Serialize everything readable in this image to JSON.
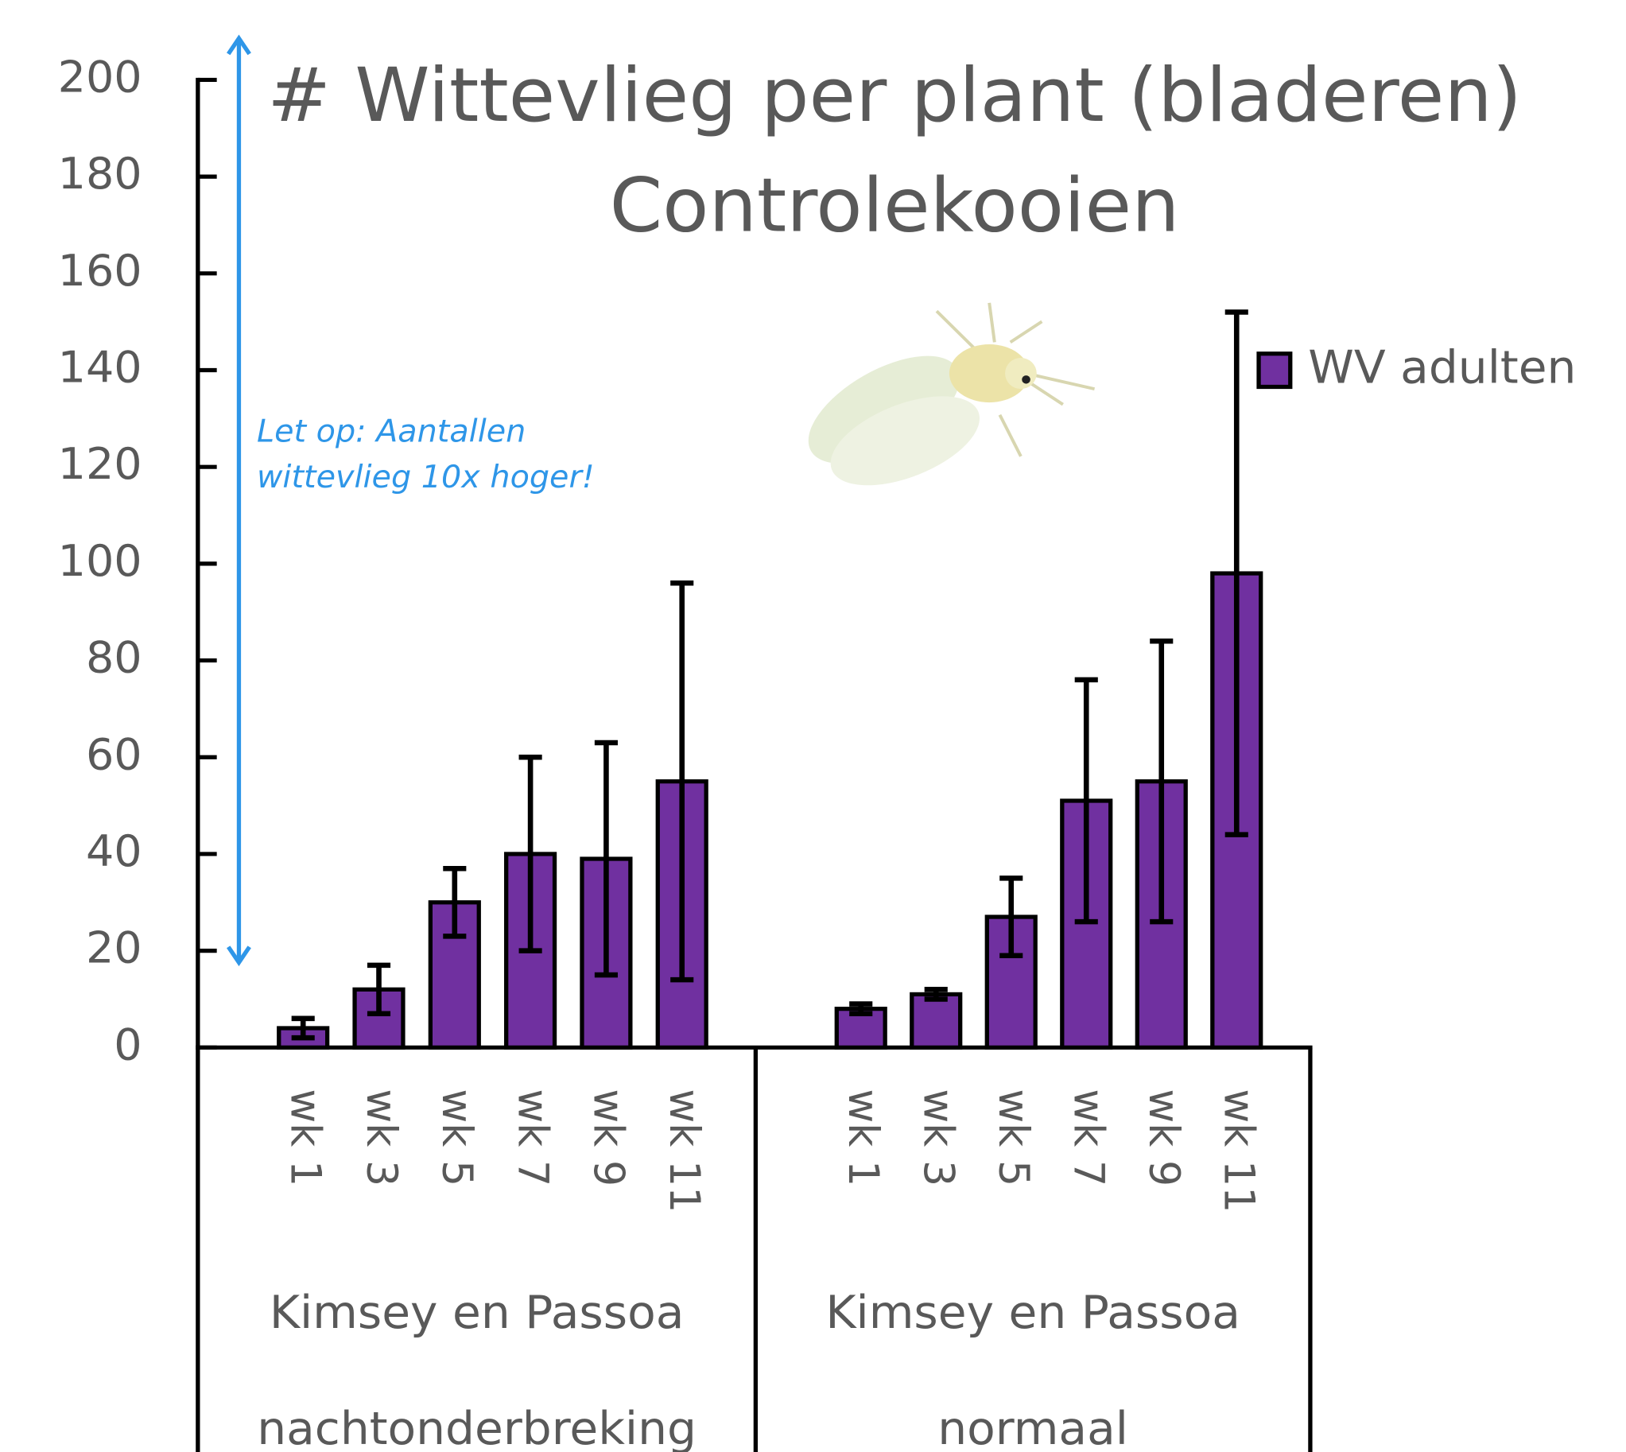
{
  "chart_data": {
    "type": "bar",
    "title": [
      "# Wittevlieg per plant (bladeren)",
      "Controlekooien"
    ],
    "annotation": [
      "Let op: Aantallen",
      "wittevlieg 10x hoger!"
    ],
    "groups": [
      {
        "label": [
          "Kimsey en Passoa",
          "nachtonderbreking"
        ],
        "categories": [
          "wk 1",
          "wk 3",
          "wk 5",
          "wk 7",
          "wk 9",
          "wk 11"
        ]
      },
      {
        "label": [
          "Kimsey en Passoa",
          "normaal"
        ],
        "categories": [
          "wk 1",
          "wk 3",
          "wk 5",
          "wk 7",
          "wk 9",
          "wk 11"
        ]
      }
    ],
    "series": [
      {
        "name": "WV adulten",
        "color": "#7030a0",
        "values": [
          [
            4,
            12,
            30,
            40,
            39,
            55
          ],
          [
            8,
            11,
            27,
            51,
            55,
            98
          ]
        ],
        "errors": [
          [
            2,
            5,
            7,
            20,
            24,
            41
          ],
          [
            1,
            1,
            8,
            25,
            29,
            54
          ]
        ]
      }
    ],
    "ylim": [
      0,
      200
    ],
    "yticks": [
      0,
      20,
      40,
      60,
      80,
      100,
      120,
      140,
      160,
      180,
      200
    ]
  }
}
